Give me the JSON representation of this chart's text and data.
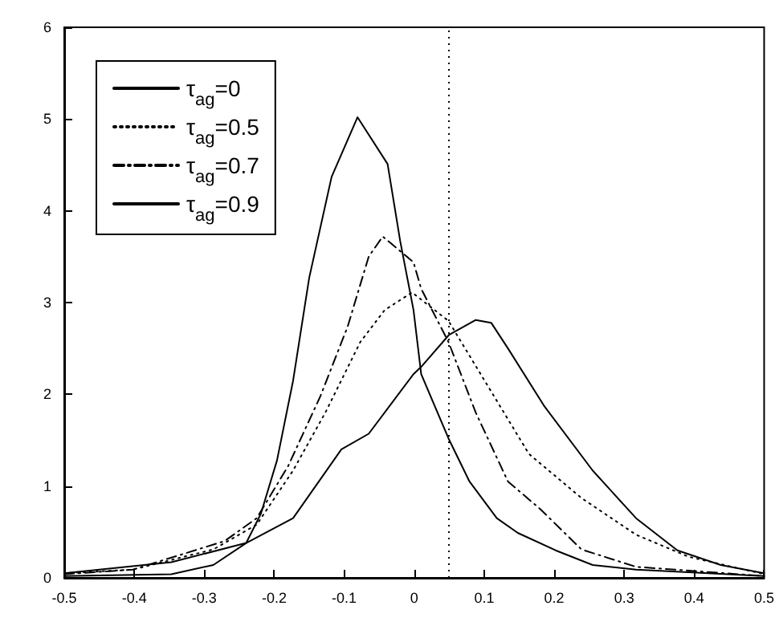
{
  "chart_data": {
    "type": "line",
    "marker": "none",
    "grid": false,
    "legend": "top left",
    "xlim": [
      -0.5,
      0.5
    ],
    "xticks": [
      -0.5,
      -0.4,
      -0.3,
      -0.2,
      -0.1,
      0,
      0.1,
      0.2,
      0.3,
      0.4,
      0.5
    ],
    "ylim": [
      0,
      6
    ],
    "yticks": [
      0,
      1,
      2,
      3,
      4,
      5,
      6
    ],
    "ref_lines": [
      {
        "axis": "x",
        "value": 0.05,
        "color": "#000000",
        "line_style": "dotted"
      }
    ],
    "series": [
      {
        "name": "τ$_{ag}$=0",
        "color": "#000000",
        "line_style": "solid",
        "x": [
          -0.5,
          -0.347,
          -0.24,
          -0.173,
          -0.104,
          -0.065,
          -0.001,
          0.01,
          0.05,
          0.088,
          0.11,
          0.134,
          0.186,
          0.255,
          0.317,
          0.376,
          0.438,
          0.5
        ],
        "values": [
          0.05,
          0.17,
          0.38,
          0.65,
          1.4,
          1.57,
          2.22,
          2.3,
          2.65,
          2.81,
          2.78,
          2.5,
          1.87,
          1.17,
          0.65,
          0.3,
          0.14,
          0.05
        ]
      },
      {
        "name": "τ$_{ag}$=0.5",
        "color": "#000000",
        "line_style": "dotted",
        "x": [
          -0.5,
          -0.402,
          -0.287,
          -0.225,
          -0.173,
          -0.127,
          -0.077,
          -0.042,
          -0.003,
          0.049,
          0.095,
          0.164,
          0.239,
          0.317,
          0.392,
          0.5
        ],
        "values": [
          0.05,
          0.09,
          0.31,
          0.58,
          1.17,
          1.8,
          2.57,
          2.92,
          3.11,
          2.8,
          2.22,
          1.35,
          0.87,
          0.47,
          0.23,
          0.04
        ]
      },
      {
        "name": "τ$_{ag}$=0.7",
        "color": "#000000",
        "line_style": "dashdot",
        "x": [
          -0.5,
          -0.402,
          -0.271,
          -0.225,
          -0.18,
          -0.134,
          -0.095,
          -0.065,
          -0.045,
          -0.001,
          0.01,
          0.049,
          0.088,
          0.134,
          0.18,
          0.239,
          0.317,
          0.5
        ],
        "values": [
          0.04,
          0.09,
          0.4,
          0.65,
          1.22,
          1.98,
          2.74,
          3.5,
          3.72,
          3.44,
          3.15,
          2.57,
          1.8,
          1.05,
          0.75,
          0.31,
          0.12,
          0.02
        ]
      },
      {
        "name": "τ$_{ag}$=0.9",
        "color": "#000000",
        "line_style": "solid",
        "x": [
          -0.5,
          -0.347,
          -0.287,
          -0.24,
          -0.219,
          -0.196,
          -0.173,
          -0.15,
          -0.118,
          -0.081,
          -0.038,
          -0.02,
          -0.001,
          0.01,
          0.049,
          0.079,
          0.118,
          0.148,
          0.202,
          0.255,
          0.317,
          0.5
        ],
        "values": [
          0.02,
          0.04,
          0.14,
          0.38,
          0.7,
          1.28,
          2.15,
          3.27,
          4.37,
          5.02,
          4.51,
          3.67,
          2.92,
          2.22,
          1.52,
          1.05,
          0.65,
          0.49,
          0.3,
          0.14,
          0.09,
          0.02
        ]
      }
    ]
  }
}
